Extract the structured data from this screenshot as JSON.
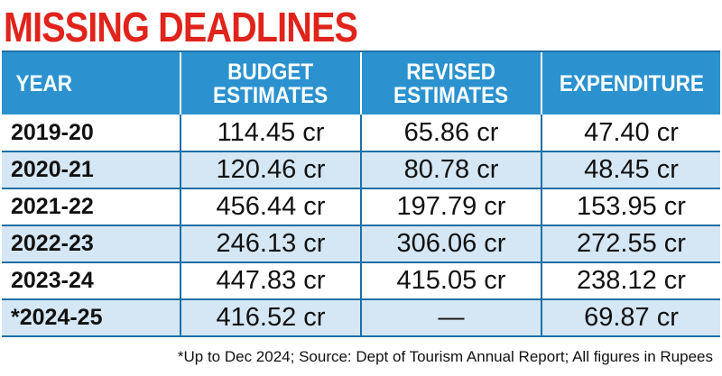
{
  "title": "MISSING DEADLINES",
  "footnote": "*Up to Dec 2024; Source: Dept of Tourism Annual Report; All figures in Rupees",
  "colors": {
    "title": "#e0231b",
    "header_bg": "#2b92cf",
    "row_alt_bg": "#d5e7f4",
    "grid": "#1c6fa6"
  },
  "chart_data": {
    "type": "table",
    "title": "MISSING DEADLINES",
    "columns": [
      "YEAR",
      "BUDGET ESTIMATES",
      "REVISED ESTIMATES",
      "EXPENDITURE"
    ],
    "header_lines": [
      [
        "YEAR"
      ],
      [
        "BUDGET",
        "ESTIMATES"
      ],
      [
        "REVISED",
        "ESTIMATES"
      ],
      [
        "EXPENDITURE"
      ]
    ],
    "rows": [
      [
        "2019-20",
        "114.45 cr",
        "65.86 cr",
        "47.40 cr"
      ],
      [
        "2020-21",
        "120.46 cr",
        "80.78 cr",
        "48.45 cr"
      ],
      [
        "2021-22",
        "456.44 cr",
        "197.79 cr",
        "153.95 cr"
      ],
      [
        "2022-23",
        "246.13 cr",
        "306.06 cr",
        "272.55 cr"
      ],
      [
        "2023-24",
        "447.83 cr",
        "415.05 cr",
        "238.12 cr"
      ],
      [
        "*2024-25",
        "416.52 cr",
        "—",
        "69.87 cr"
      ]
    ],
    "unit": "cr (crore rupees)",
    "note": "*Up to Dec 2024; Source: Dept of Tourism Annual Report; All figures in Rupees"
  }
}
